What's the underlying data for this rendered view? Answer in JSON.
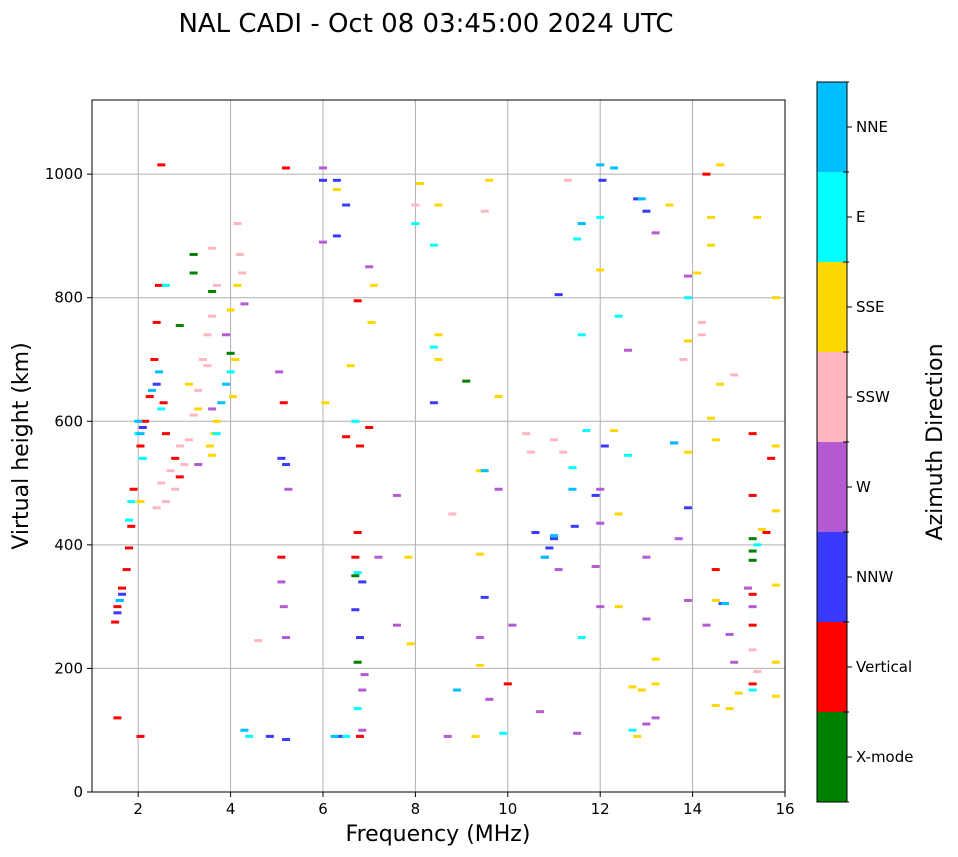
{
  "chart_data": {
    "type": "scatter",
    "title": "NAL CADI - Oct 08 03:45:00 2024 UTC",
    "xlabel": "Frequency (MHz)",
    "ylabel": "Virtual height (km)",
    "xlim": [
      1,
      16
    ],
    "ylim": [
      0,
      1120
    ],
    "xticks": [
      2,
      4,
      6,
      8,
      10,
      12,
      14,
      16
    ],
    "yticks": [
      0,
      200,
      400,
      600,
      800,
      1000
    ],
    "grid": true,
    "colorbar": {
      "title": "Azimuth Direction",
      "categories": [
        {
          "name": "X-mode",
          "color": "#008000"
        },
        {
          "name": "Vertical",
          "color": "#ff0000"
        },
        {
          "name": "NNW",
          "color": "#3a3aff"
        },
        {
          "name": "W",
          "color": "#b45ad2"
        },
        {
          "name": "SSW",
          "color": "#ffb6c1"
        },
        {
          "name": "SSE",
          "color": "#ffd700"
        },
        {
          "name": "E",
          "color": "#00ffff"
        },
        {
          "name": "NNE",
          "color": "#00bfff"
        }
      ]
    },
    "series": [
      {
        "name": "Vertical",
        "points": [
          [
            1.5,
            275
          ],
          [
            1.55,
            300
          ],
          [
            1.65,
            330
          ],
          [
            1.75,
            360
          ],
          [
            1.8,
            395
          ],
          [
            1.85,
            430
          ],
          [
            1.9,
            490
          ],
          [
            2.05,
            560
          ],
          [
            2.15,
            600
          ],
          [
            2.25,
            640
          ],
          [
            2.35,
            700
          ],
          [
            2.4,
            760
          ],
          [
            2.45,
            820
          ],
          [
            2.5,
            1015
          ],
          [
            2.55,
            630
          ],
          [
            2.6,
            580
          ],
          [
            2.8,
            540
          ],
          [
            2.9,
            510
          ],
          [
            5.2,
            1010
          ],
          [
            5.15,
            630
          ],
          [
            5.1,
            380
          ],
          [
            6.75,
            795
          ],
          [
            6.8,
            560
          ],
          [
            6.75,
            420
          ],
          [
            6.7,
            380
          ],
          [
            6.8,
            90
          ],
          [
            6.5,
            575
          ],
          [
            7.0,
            590
          ],
          [
            10.0,
            175
          ],
          [
            15.3,
            320
          ],
          [
            15.3,
            270
          ],
          [
            15.3,
            175
          ],
          [
            15.3,
            480
          ],
          [
            15.3,
            580
          ],
          [
            15.7,
            540
          ],
          [
            15.6,
            420
          ],
          [
            14.5,
            360
          ],
          [
            14.3,
            1000
          ],
          [
            1.55,
            120
          ],
          [
            2.05,
            90
          ]
        ]
      },
      {
        "name": "NNW",
        "points": [
          [
            1.55,
            290
          ],
          [
            1.6,
            310
          ],
          [
            1.65,
            320
          ],
          [
            2.1,
            590
          ],
          [
            2.4,
            660
          ],
          [
            5.1,
            540
          ],
          [
            5.2,
            530
          ],
          [
            6.3,
            990
          ],
          [
            6.7,
            295
          ],
          [
            6.8,
            250
          ],
          [
            6.85,
            340
          ],
          [
            8.4,
            630
          ],
          [
            9.5,
            315
          ],
          [
            10.6,
            420
          ],
          [
            10.9,
            395
          ],
          [
            11.0,
            410
          ],
          [
            11.45,
            430
          ],
          [
            11.9,
            480
          ],
          [
            12.1,
            560
          ],
          [
            12.05,
            990
          ],
          [
            13.6,
            565
          ],
          [
            14.65,
            305
          ],
          [
            12.8,
            960
          ],
          [
            6.0,
            990
          ],
          [
            6.3,
            900
          ],
          [
            6.5,
            950
          ],
          [
            6.35,
            90
          ],
          [
            4.85,
            90
          ],
          [
            5.2,
            85
          ],
          [
            11.1,
            805
          ],
          [
            13.0,
            940
          ],
          [
            13.9,
            460
          ]
        ]
      },
      {
        "name": "W",
        "points": [
          [
            3.3,
            530
          ],
          [
            3.6,
            620
          ],
          [
            3.9,
            740
          ],
          [
            4.3,
            790
          ],
          [
            5.05,
            680
          ],
          [
            5.1,
            340
          ],
          [
            5.15,
            300
          ],
          [
            5.2,
            250
          ],
          [
            5.25,
            490
          ],
          [
            6.0,
            1010
          ],
          [
            6.0,
            890
          ],
          [
            6.9,
            190
          ],
          [
            6.85,
            165
          ],
          [
            7.0,
            850
          ],
          [
            7.6,
            480
          ],
          [
            7.6,
            270
          ],
          [
            7.2,
            380
          ],
          [
            8.7,
            90
          ],
          [
            9.4,
            250
          ],
          [
            9.6,
            150
          ],
          [
            9.8,
            490
          ],
          [
            10.1,
            270
          ],
          [
            10.7,
            130
          ],
          [
            10.8,
            380
          ],
          [
            11.5,
            95
          ],
          [
            12.0,
            300
          ],
          [
            12.0,
            435
          ],
          [
            12.6,
            715
          ],
          [
            13.0,
            380
          ],
          [
            13.0,
            280
          ],
          [
            13.0,
            110
          ],
          [
            13.2,
            120
          ],
          [
            13.9,
            310
          ],
          [
            14.3,
            270
          ],
          [
            14.8,
            255
          ],
          [
            14.9,
            210
          ],
          [
            15.2,
            330
          ],
          [
            15.3,
            300
          ],
          [
            13.2,
            905
          ],
          [
            13.9,
            835
          ],
          [
            13.7,
            410
          ],
          [
            12.0,
            490
          ],
          [
            11.9,
            365
          ],
          [
            6.85,
            100
          ],
          [
            11.1,
            360
          ]
        ]
      },
      {
        "name": "SSW",
        "points": [
          [
            2.4,
            460
          ],
          [
            2.6,
            470
          ],
          [
            2.8,
            490
          ],
          [
            3.0,
            530
          ],
          [
            3.1,
            570
          ],
          [
            3.2,
            610
          ],
          [
            3.3,
            650
          ],
          [
            3.4,
            700
          ],
          [
            3.5,
            740
          ],
          [
            3.6,
            880
          ],
          [
            3.6,
            770
          ],
          [
            3.7,
            820
          ],
          [
            4.15,
            920
          ],
          [
            4.2,
            870
          ],
          [
            4.25,
            840
          ],
          [
            2.5,
            500
          ],
          [
            2.7,
            520
          ],
          [
            2.9,
            560
          ],
          [
            3.5,
            690
          ],
          [
            15.3,
            230
          ],
          [
            15.4,
            195
          ],
          [
            14.9,
            675
          ],
          [
            14.2,
            760
          ],
          [
            13.8,
            700
          ],
          [
            14.2,
            740
          ],
          [
            11.3,
            990
          ],
          [
            11.2,
            550
          ],
          [
            11.0,
            570
          ],
          [
            10.4,
            580
          ],
          [
            10.5,
            550
          ],
          [
            9.5,
            940
          ],
          [
            8.0,
            950
          ],
          [
            4.6,
            245
          ],
          [
            8.8,
            450
          ]
        ]
      },
      {
        "name": "SSE",
        "points": [
          [
            2.05,
            470
          ],
          [
            3.1,
            660
          ],
          [
            3.3,
            620
          ],
          [
            3.55,
            560
          ],
          [
            3.6,
            545
          ],
          [
            3.65,
            580
          ],
          [
            3.7,
            600
          ],
          [
            4.05,
            640
          ],
          [
            4.1,
            700
          ],
          [
            4.0,
            780
          ],
          [
            4.15,
            820
          ],
          [
            6.05,
            630
          ],
          [
            6.3,
            975
          ],
          [
            6.6,
            690
          ],
          [
            7.05,
            760
          ],
          [
            7.1,
            820
          ],
          [
            7.85,
            380
          ],
          [
            7.9,
            240
          ],
          [
            8.1,
            985
          ],
          [
            8.5,
            950
          ],
          [
            8.5,
            740
          ],
          [
            8.5,
            700
          ],
          [
            9.3,
            90
          ],
          [
            9.4,
            205
          ],
          [
            9.4,
            385
          ],
          [
            9.4,
            520
          ],
          [
            9.6,
            990
          ],
          [
            9.8,
            640
          ],
          [
            12.0,
            845
          ],
          [
            12.3,
            585
          ],
          [
            12.4,
            450
          ],
          [
            12.4,
            300
          ],
          [
            12.7,
            170
          ],
          [
            12.8,
            90
          ],
          [
            12.9,
            165
          ],
          [
            13.2,
            215
          ],
          [
            13.2,
            175
          ],
          [
            13.5,
            950
          ],
          [
            13.9,
            730
          ],
          [
            13.9,
            550
          ],
          [
            14.1,
            840
          ],
          [
            14.4,
            930
          ],
          [
            14.4,
            885
          ],
          [
            14.4,
            605
          ],
          [
            14.5,
            570
          ],
          [
            14.5,
            310
          ],
          [
            14.5,
            140
          ],
          [
            14.6,
            1015
          ],
          [
            14.6,
            660
          ],
          [
            14.8,
            135
          ],
          [
            15.0,
            160
          ],
          [
            15.4,
            930
          ],
          [
            15.5,
            425
          ],
          [
            15.8,
            560
          ],
          [
            15.8,
            455
          ],
          [
            15.8,
            335
          ],
          [
            15.8,
            210
          ],
          [
            15.8,
            155
          ],
          [
            15.8,
            800
          ]
        ]
      },
      {
        "name": "E",
        "points": [
          [
            1.8,
            440
          ],
          [
            1.85,
            470
          ],
          [
            2.0,
            580
          ],
          [
            2.1,
            540
          ],
          [
            2.5,
            620
          ],
          [
            2.6,
            820
          ],
          [
            3.7,
            580
          ],
          [
            4.0,
            680
          ],
          [
            4.4,
            90
          ],
          [
            6.5,
            90
          ],
          [
            6.75,
            135
          ],
          [
            6.75,
            355
          ],
          [
            6.7,
            600
          ],
          [
            8.0,
            920
          ],
          [
            8.4,
            885
          ],
          [
            8.4,
            720
          ],
          [
            9.9,
            95
          ],
          [
            11.4,
            525
          ],
          [
            11.5,
            895
          ],
          [
            11.6,
            740
          ],
          [
            11.6,
            250
          ],
          [
            11.7,
            585
          ],
          [
            12.0,
            930
          ],
          [
            12.4,
            770
          ],
          [
            12.6,
            545
          ],
          [
            12.7,
            100
          ],
          [
            13.9,
            800
          ],
          [
            15.3,
            165
          ],
          [
            15.4,
            400
          ],
          [
            11.6,
            920
          ]
        ]
      },
      {
        "name": "NNE",
        "points": [
          [
            1.6,
            310
          ],
          [
            2.0,
            600
          ],
          [
            2.05,
            580
          ],
          [
            2.3,
            650
          ],
          [
            2.45,
            680
          ],
          [
            3.8,
            630
          ],
          [
            3.9,
            660
          ],
          [
            8.9,
            165
          ],
          [
            10.8,
            380
          ],
          [
            11.0,
            415
          ],
          [
            11.4,
            490
          ],
          [
            11.6,
            920
          ],
          [
            12.0,
            1015
          ],
          [
            12.3,
            1010
          ],
          [
            12.9,
            960
          ],
          [
            13.6,
            565
          ],
          [
            14.7,
            305
          ],
          [
            4.3,
            100
          ],
          [
            6.25,
            90
          ],
          [
            9.5,
            520
          ]
        ]
      },
      {
        "name": "X-mode",
        "points": [
          [
            2.9,
            755
          ],
          [
            3.2,
            870
          ],
          [
            3.2,
            840
          ],
          [
            3.6,
            810
          ],
          [
            4.0,
            710
          ],
          [
            9.1,
            665
          ],
          [
            15.3,
            410
          ],
          [
            15.3,
            390
          ],
          [
            15.3,
            375
          ],
          [
            6.7,
            350
          ],
          [
            6.75,
            210
          ]
        ]
      }
    ]
  }
}
